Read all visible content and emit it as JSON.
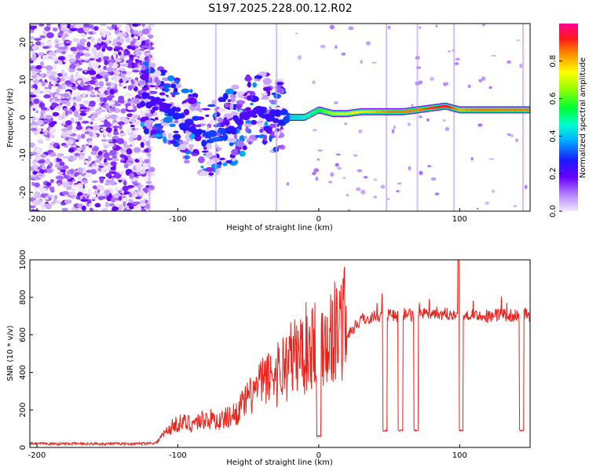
{
  "title": "S197.2025.228.00.12.R02",
  "chart_data": [
    {
      "type": "heatmap",
      "name": "spectrogram",
      "xlabel": "Height of straight line (km)",
      "ylabel": "Frequency (Hz)",
      "xlim": [
        -205,
        150
      ],
      "ylim": [
        -25,
        25
      ],
      "xticks": [
        -200,
        -100,
        0,
        100
      ],
      "yticks": [
        -20,
        -10,
        0,
        10,
        20
      ],
      "colorbar": {
        "label": "Normalized spectral amplitude",
        "range": [
          0,
          1
        ],
        "ticks": [
          "0.0",
          "0.2",
          "0.4",
          "0.6",
          "0.8"
        ]
      },
      "signal_track": {
        "x": [
          -125,
          -110,
          -100,
          -90,
          -80,
          -70,
          -60,
          -50,
          -40,
          -30,
          -20,
          -10,
          0,
          10,
          20,
          30,
          40,
          50,
          60,
          70,
          80,
          90,
          100,
          110,
          120,
          130,
          140,
          150
        ],
        "freq": [
          5,
          3,
          0,
          -3,
          -6,
          -5,
          -2,
          1,
          2,
          0,
          0,
          0,
          2,
          1,
          1,
          1.5,
          1.5,
          1.5,
          1.5,
          2,
          2.5,
          3,
          2,
          2,
          2,
          2,
          2,
          2
        ],
        "amplitude": [
          0.3,
          0.25,
          0.35,
          0.3,
          0.35,
          0.4,
          0.3,
          0.25,
          0.3,
          0.3,
          0.4,
          0.45,
          0.55,
          0.7,
          0.75,
          0.75,
          0.8,
          0.85,
          0.85,
          0.85,
          0.9,
          0.95,
          0.8,
          0.85,
          0.85,
          0.85,
          0.85,
          0.85
        ]
      }
    },
    {
      "type": "line",
      "name": "snr",
      "xlabel": "Height of straight line (km)",
      "ylabel": "SNR (10 * v/v)",
      "xlim": [
        -205,
        150
      ],
      "ylim": [
        0,
        1000
      ],
      "xticks": [
        -200,
        -100,
        0,
        100
      ],
      "yticks": [
        0,
        200,
        400,
        600,
        800,
        1000
      ],
      "series": [
        {
          "name": "SNR",
          "color": "#e8211b",
          "x": [
            -205,
            -190,
            -170,
            -150,
            -130,
            -115,
            -110,
            -105,
            -100,
            -90,
            -80,
            -70,
            -60,
            -50,
            -40,
            -30,
            -20,
            -10,
            0,
            10,
            20,
            30,
            40,
            48,
            50,
            58,
            60,
            68,
            70,
            80,
            90,
            100,
            110,
            120,
            130,
            140,
            145,
            150
          ],
          "values": [
            20,
            20,
            20,
            20,
            20,
            25,
            60,
            90,
            110,
            110,
            130,
            120,
            150,
            220,
            300,
            340,
            400,
            450,
            500,
            520,
            600,
            680,
            700,
            700,
            710,
            700,
            710,
            700,
            710,
            720,
            710,
            720,
            710,
            700,
            710,
            700,
            710,
            700
          ]
        }
      ],
      "dropouts": [
        {
          "x": 0,
          "value": 60
        },
        {
          "x": 47,
          "value": 90
        },
        {
          "x": 58,
          "value": 90
        },
        {
          "x": 69,
          "value": 90
        },
        {
          "x": 101,
          "value": 90
        },
        {
          "x": 144,
          "value": 90
        }
      ],
      "spike": {
        "x": 99,
        "value": 1000
      }
    }
  ]
}
